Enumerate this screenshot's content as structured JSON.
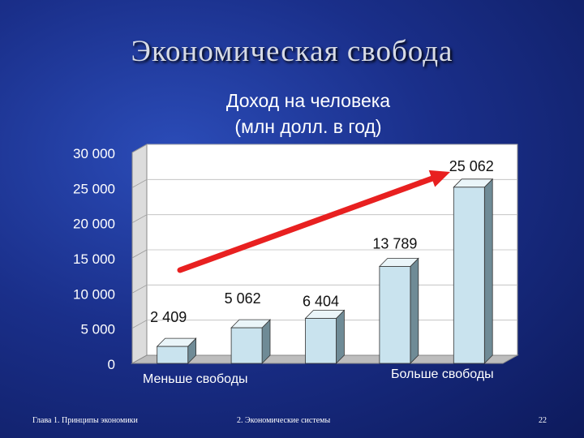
{
  "slide": {
    "title": "Экономическая свобода"
  },
  "footer": {
    "left": "Глава 1. Принципы экономики",
    "center": "2. Экономические системы",
    "page_number": "22"
  },
  "colors": {
    "bar_front": "#c9e3ee",
    "bar_side": "#6f8b96",
    "bar_top": "#eaf5f9",
    "arrow": "#e82020",
    "plot_bg": "#ffffff"
  },
  "chart_data": {
    "type": "bar",
    "title": "Доход на человека",
    "subtitle": "(млн долл. в год)",
    "categories": [
      "",
      "",
      "",
      "",
      ""
    ],
    "values": [
      2409,
      5062,
      6404,
      13789,
      25062
    ],
    "value_labels": [
      "2 409",
      "5 062",
      "6 404",
      "13 789",
      "25 062"
    ],
    "ylim": [
      0,
      30000
    ],
    "yticks": [
      0,
      5000,
      10000,
      15000,
      20000,
      25000,
      30000
    ],
    "ytick_labels": [
      "0",
      "5 000",
      "10 000",
      "15 000",
      "20 000",
      "25 000",
      "30 000"
    ],
    "grid": true,
    "annotations": {
      "left_label": "Меньше свободы",
      "right_label": "Больше свободы",
      "arrow": "increasing"
    }
  }
}
